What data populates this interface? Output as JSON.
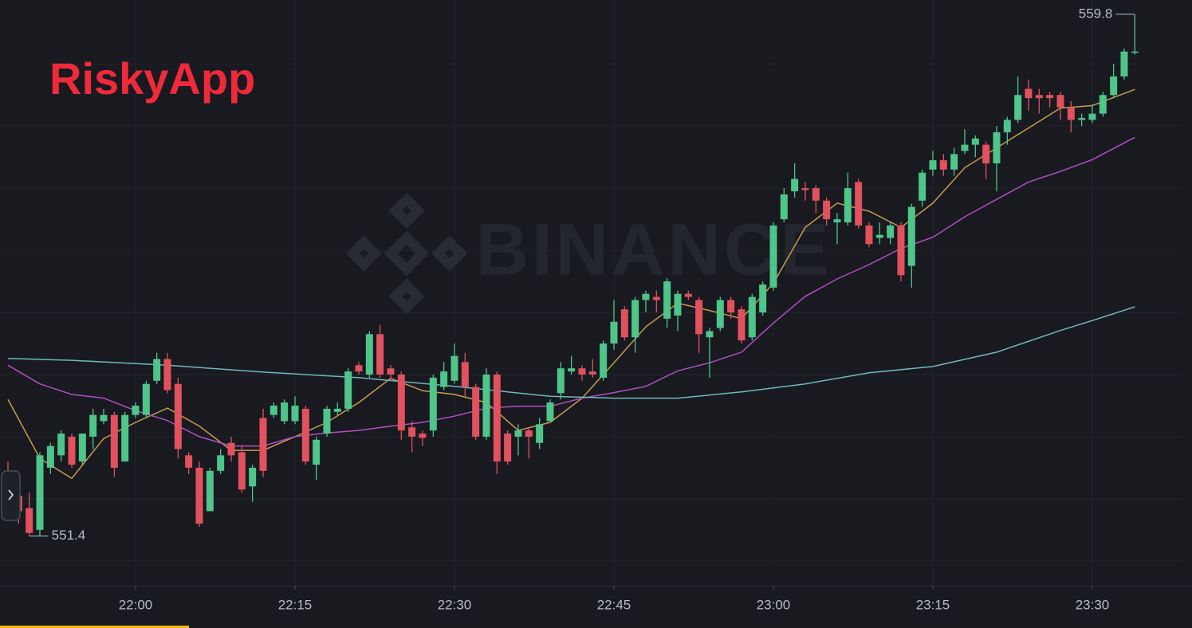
{
  "chart_data": {
    "type": "candlestick",
    "title": "RiskyApp",
    "watermark": "BINANCE",
    "categories": [
      null,
      null,
      null,
      null,
      null,
      null,
      null,
      null,
      null,
      null,
      null,
      null,
      "22:00",
      null,
      null,
      null,
      null,
      null,
      null,
      null,
      null,
      null,
      null,
      null,
      null,
      null,
      null,
      "22:15",
      null,
      null,
      null,
      null,
      null,
      null,
      null,
      null,
      null,
      null,
      null,
      null,
      null,
      null,
      "22:30",
      null,
      null,
      null,
      null,
      null,
      null,
      null,
      null,
      null,
      null,
      null,
      null,
      null,
      null,
      "22:45",
      null,
      null,
      null,
      null,
      null,
      null,
      null,
      null,
      null,
      null,
      null,
      null,
      null,
      null,
      "23:00",
      null,
      null,
      null,
      null,
      null,
      null,
      null,
      null,
      null,
      null,
      null,
      null,
      null,
      null,
      "23:15",
      null,
      null,
      null,
      null,
      null,
      null,
      null,
      null,
      null,
      null,
      null,
      null,
      null,
      null,
      "23:30",
      null,
      null,
      null,
      null
    ],
    "open": [
      552.3,
      552.05,
      551.85,
      551.5,
      552.5,
      552.7,
      553.0,
      552.6,
      553.0,
      553.25,
      553.35,
      552.6,
      553.35,
      553.35,
      553.9,
      554.25,
      553.85,
      552.7,
      552.5,
      551.8,
      552.45,
      552.9,
      552.75,
      552.2,
      553.3,
      553.35,
      553.25,
      553.25,
      553.45,
      552.55,
      553.05,
      553.4,
      553.45,
      554.15,
      554.0,
      554.65,
      554.1,
      554.0,
      553.15,
      553.05,
      553.1,
      553.8,
      553.9,
      554.2,
      553.8,
      553.0,
      554.0,
      553.05,
      553.0,
      553.1,
      552.9,
      553.25,
      553.7,
      554.05,
      554.1,
      554.05,
      553.95,
      554.5,
      555.05,
      554.6,
      555.2,
      555.25,
      554.9,
      554.95,
      555.3,
      555.2,
      554.6,
      554.75,
      555.2,
      555.05,
      554.6,
      555.0,
      555.4,
      556.5,
      556.95,
      557.0,
      557.0,
      556.8,
      556.45,
      556.45,
      557.1,
      556.4,
      556.2,
      556.2,
      556.4,
      555.75,
      556.8,
      557.3,
      557.45,
      557.3,
      557.6,
      557.7,
      557.7,
      557.4,
      557.9,
      558.1,
      558.6,
      558.5,
      558.5,
      558.5,
      558.3,
      558.1,
      558.1,
      558.2,
      558.5,
      558.8,
      559.18
    ],
    "high": [
      552.6,
      552.1,
      552.1,
      552.75,
      552.9,
      553.1,
      553.05,
      553.05,
      553.45,
      553.45,
      553.4,
      553.4,
      553.55,
      553.9,
      554.35,
      554.35,
      553.95,
      552.75,
      552.6,
      552.5,
      552.8,
      553.0,
      552.85,
      552.55,
      553.45,
      553.55,
      553.6,
      553.65,
      553.5,
      553.0,
      553.5,
      553.55,
      554.1,
      554.2,
      554.7,
      554.8,
      554.15,
      554.05,
      553.25,
      553.1,
      554.0,
      554.2,
      554.5,
      554.35,
      553.85,
      554.1,
      554.05,
      553.1,
      553.2,
      553.15,
      553.3,
      553.6,
      554.2,
      554.3,
      554.15,
      554.25,
      554.55,
      555.2,
      555.1,
      555.25,
      555.35,
      555.35,
      555.55,
      555.35,
      555.35,
      555.25,
      554.75,
      555.25,
      555.25,
      555.1,
      555.3,
      555.5,
      556.45,
      557.0,
      557.4,
      557.1,
      557.05,
      556.85,
      556.6,
      557.25,
      557.15,
      556.45,
      556.45,
      556.45,
      556.45,
      556.75,
      557.3,
      557.6,
      557.55,
      557.65,
      557.95,
      557.85,
      557.75,
      558.0,
      558.15,
      558.8,
      558.75,
      558.6,
      558.55,
      558.55,
      558.4,
      558.2,
      558.35,
      558.55,
      559.0,
      559.25,
      559.8
    ],
    "low": [
      551.9,
      551.6,
      551.4,
      551.4,
      552.4,
      552.6,
      552.5,
      552.55,
      552.8,
      553.2,
      552.35,
      552.6,
      553.3,
      553.3,
      553.85,
      553.7,
      552.65,
      552.4,
      551.55,
      551.8,
      552.4,
      552.6,
      552.1,
      551.95,
      552.35,
      553.3,
      553.2,
      553.2,
      552.55,
      552.3,
      553.0,
      553.35,
      553.4,
      554.0,
      553.95,
      553.95,
      553.9,
      552.95,
      552.75,
      552.85,
      553.0,
      553.75,
      553.85,
      553.65,
      552.95,
      552.95,
      552.4,
      552.55,
      552.7,
      552.65,
      552.8,
      553.25,
      553.6,
      554.0,
      553.9,
      553.95,
      553.9,
      554.4,
      554.55,
      554.35,
      555.0,
      555.0,
      554.75,
      554.7,
      555.2,
      554.35,
      553.95,
      554.7,
      554.9,
      554.5,
      554.55,
      554.95,
      555.35,
      556.45,
      556.85,
      556.8,
      556.6,
      556.4,
      556.1,
      556.4,
      556.35,
      556.05,
      556.1,
      556.1,
      555.5,
      555.4,
      556.7,
      557.2,
      557.2,
      557.2,
      557.55,
      557.5,
      557.15,
      556.95,
      557.7,
      558.05,
      558.25,
      558.2,
      558.3,
      558.1,
      557.9,
      558.0,
      558.05,
      558.15,
      558.45,
      558.75,
      559.15
    ],
    "close": [
      552.0,
      551.8,
      551.45,
      552.7,
      552.85,
      553.05,
      552.55,
      553.05,
      553.35,
      553.35,
      552.5,
      553.35,
      553.5,
      553.85,
      554.25,
      553.75,
      552.8,
      552.5,
      551.6,
      552.45,
      552.7,
      552.7,
      552.15,
      552.5,
      552.45,
      553.5,
      553.55,
      553.5,
      552.6,
      552.95,
      553.45,
      553.45,
      554.05,
      554.05,
      554.65,
      554.0,
      554.0,
      553.1,
      553.0,
      552.98,
      553.95,
      554.05,
      554.3,
      553.8,
      553.0,
      554.0,
      552.6,
      552.6,
      553.1,
      553.0,
      553.2,
      553.55,
      554.1,
      554.1,
      554.0,
      554.0,
      554.5,
      554.85,
      554.6,
      555.2,
      555.3,
      555.2,
      555.5,
      555.3,
      555.25,
      554.65,
      554.7,
      555.2,
      555.0,
      554.55,
      555.25,
      555.45,
      556.4,
      556.9,
      557.15,
      556.97,
      556.8,
      556.5,
      556.5,
      557.0,
      556.4,
      556.1,
      556.25,
      556.4,
      555.6,
      556.7,
      557.25,
      557.45,
      557.3,
      557.55,
      557.7,
      557.8,
      557.4,
      557.9,
      558.1,
      558.5,
      558.45,
      558.45,
      558.45,
      558.3,
      558.1,
      558.13,
      558.2,
      558.5,
      558.8,
      559.2,
      559.2
    ],
    "up_color": "#4fc58a",
    "down_color": "#e2515e",
    "ma_lines": [
      {
        "color": "#c99a4f",
        "x": [
          0,
          3,
          6,
          9,
          12,
          15,
          18,
          21,
          24,
          27,
          30,
          33,
          36,
          39,
          42,
          45,
          48,
          51,
          54,
          57,
          60,
          63,
          66,
          69,
          72,
          75,
          78,
          81,
          84,
          87,
          90,
          93,
          96,
          99,
          102,
          106
        ],
        "values": [
          553.6,
          552.65,
          552.33,
          552.97,
          553.23,
          553.46,
          553.17,
          552.78,
          552.78,
          553.0,
          553.23,
          553.55,
          553.94,
          553.74,
          553.68,
          553.55,
          553.1,
          553.23,
          553.62,
          554.19,
          554.77,
          555.15,
          555.03,
          554.9,
          555.47,
          556.37,
          556.76,
          556.63,
          556.37,
          556.76,
          557.33,
          557.65,
          557.97,
          558.29,
          558.33,
          558.59
        ]
      },
      {
        "color": "#b04fc2",
        "x": [
          0,
          3,
          6,
          9,
          12,
          15,
          18,
          21,
          24,
          27,
          30,
          33,
          36,
          39,
          42,
          45,
          48,
          51,
          54,
          57,
          60,
          63,
          66,
          69,
          72,
          75,
          78,
          81,
          84,
          87,
          90,
          93,
          96,
          99,
          102,
          106
        ],
        "values": [
          554.15,
          553.85,
          553.68,
          553.62,
          553.42,
          553.26,
          553.0,
          552.85,
          552.85,
          553.0,
          553.06,
          553.1,
          553.17,
          553.23,
          553.33,
          553.46,
          553.49,
          553.49,
          553.62,
          553.71,
          553.81,
          554.06,
          554.19,
          554.36,
          554.83,
          555.26,
          555.54,
          555.77,
          556.03,
          556.21,
          556.54,
          556.82,
          557.1,
          557.27,
          557.46,
          557.82
        ]
      },
      {
        "color": "#6fb8bd",
        "x": [
          0,
          6,
          15,
          24,
          33,
          42,
          51,
          57,
          63,
          69,
          75,
          81,
          87,
          93,
          99,
          102,
          106
        ],
        "values": [
          554.26,
          554.23,
          554.15,
          554.04,
          553.95,
          553.81,
          553.65,
          553.62,
          553.62,
          553.72,
          553.85,
          554.03,
          554.13,
          554.36,
          554.71,
          554.87,
          555.09
        ]
      }
    ],
    "max_label": 559.8,
    "min_label": 551.4,
    "ylim": [
      550.6,
      560.03
    ],
    "grid_y": [
      551,
      552,
      553,
      554,
      555,
      556,
      557,
      558,
      559
    ],
    "grid": true
  }
}
